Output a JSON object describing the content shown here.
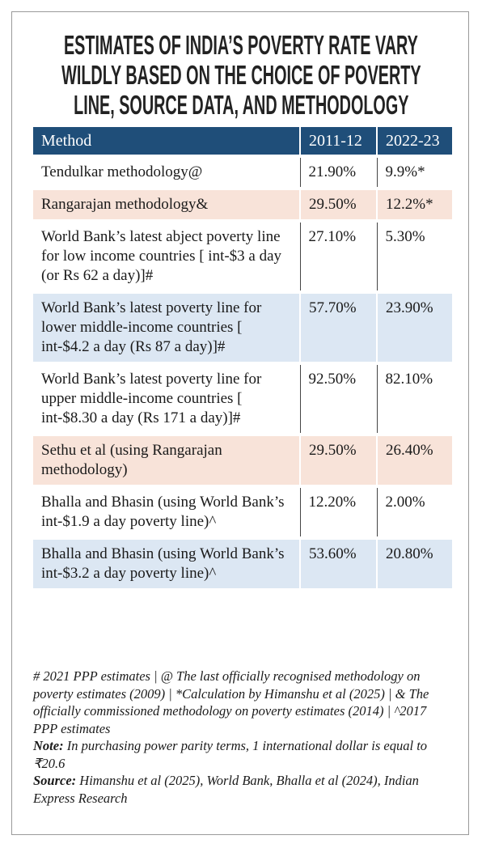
{
  "title_lines": [
    "ESTIMATES OF INDIA’S POVERTY RATE VARY",
    "WILDLY BASED ON THE CHOICE OF POVERTY",
    "LINE, SOURCE DATA, AND METHODOLOGY"
  ],
  "table": {
    "header": [
      "Method",
      "2011-12",
      "2022-23"
    ],
    "rows": [
      [
        "Tendulkar methodology@",
        "21.90%",
        "9.9%*"
      ],
      [
        "Rangarajan methodology&",
        "29.50%",
        "12.2%*"
      ],
      [
        "World Bank’s latest abject poverty line for low income countries [ int-$3 a day (or Rs 62 a day)]#",
        "27.10%",
        "5.30%"
      ],
      [
        "World Bank’s latest poverty line for lower middle-income countries [ int-$4.2 a day (Rs 87 a day)]#",
        "57.70%",
        "23.90%"
      ],
      [
        "World Bank’s latest poverty line for upper middle-income countries [ int-$8.30 a day (Rs 171 a day)]#",
        "92.50%",
        "82.10%"
      ],
      [
        "Sethu et al (using Rangarajan methodology)",
        "29.50%",
        "26.40%"
      ],
      [
        "Bhalla and Bhasin (using World Bank’s int-$1.9 a day poverty line)^",
        "12.20%",
        "2.00%"
      ],
      [
        "Bhalla and Bhasin (using World Bank’s int-$3.2 a day poverty line)^",
        "53.60%",
        "20.80%"
      ]
    ]
  },
  "footnotes": "# 2021 PPP estimates | @ The last officially recognised methodology on poverty estimates (2009) | *Calculation by Himanshu et al (2025) | & The officially commissioned methodology on poverty estimates (2014) | ^2017 PPP estimates",
  "note": {
    "label": "Note:",
    "text": "In purchasing power parity terms, 1 international dollar is equal to ₹20.6"
  },
  "source": {
    "label": "Source:",
    "text": "Himanshu et al (2025), World Bank, Bhalla et al (2024), Indian Express Research"
  }
}
